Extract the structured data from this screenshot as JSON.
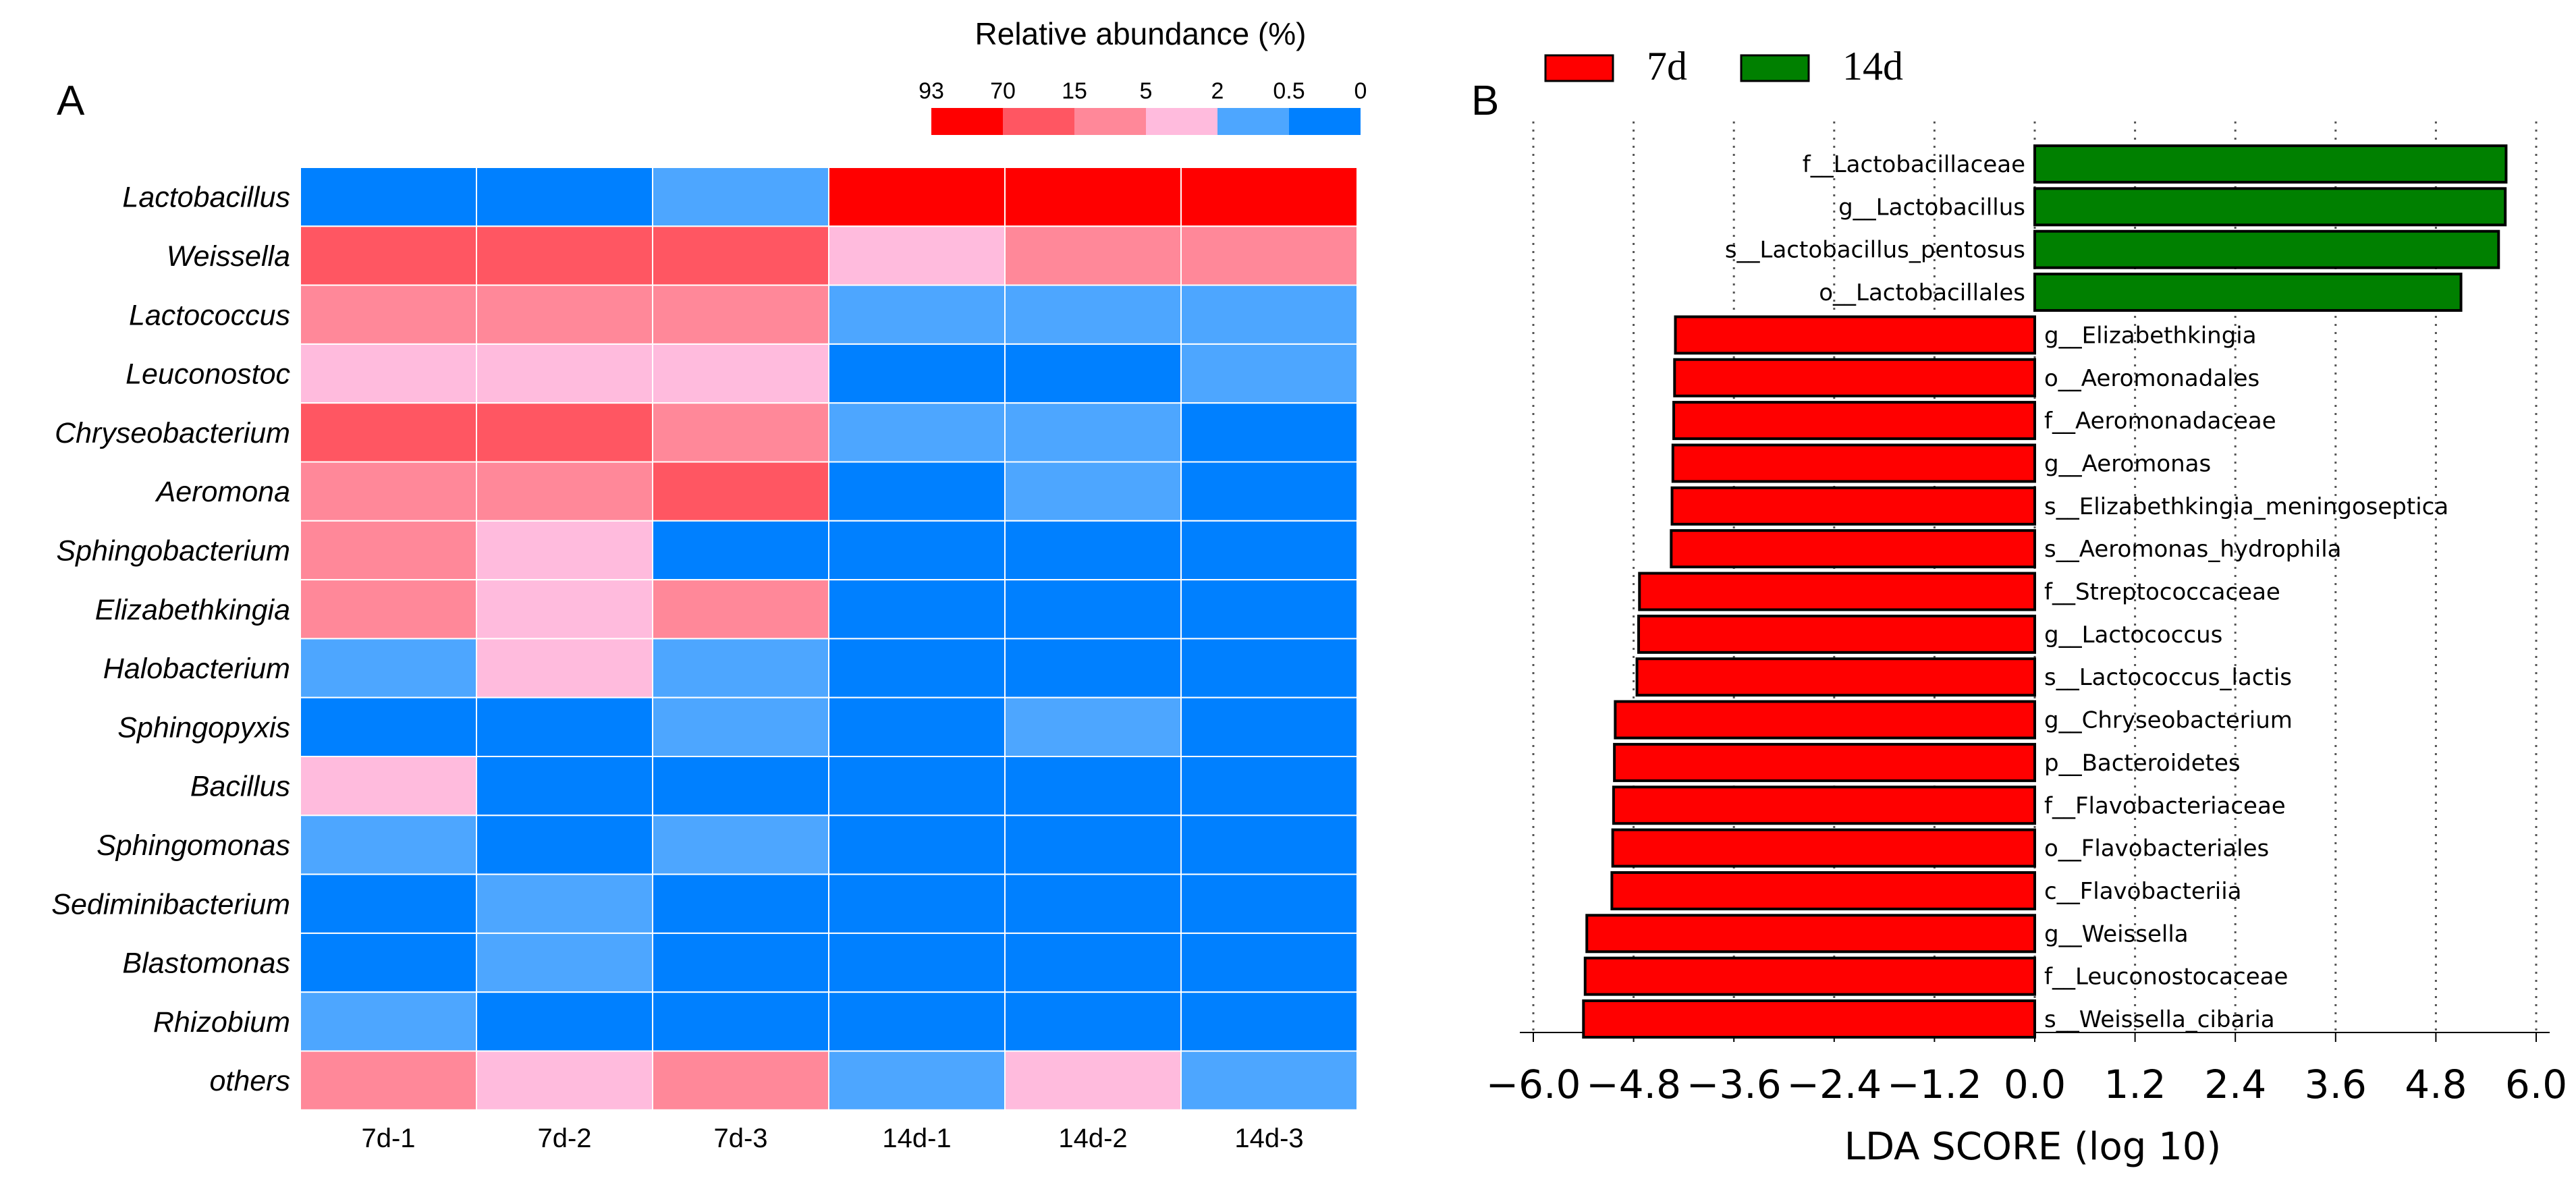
{
  "panel_a": {
    "letter": "A",
    "colorbar": {
      "title": "Relative abundance (%)",
      "ticks": [
        "93",
        "70",
        "15",
        "5",
        "2",
        "0.5",
        "0"
      ],
      "levels": [
        {
          "index": 1,
          "color": "#ff0000"
        },
        {
          "index": 2,
          "color": "#ff5662"
        },
        {
          "index": 3,
          "color": "#ff8899"
        },
        {
          "index": 4,
          "color": "#ffbbdd"
        },
        {
          "index": 5,
          "color": "#4da6ff"
        },
        {
          "index": 6,
          "color": "#0080ff"
        }
      ]
    }
  },
  "panel_b": {
    "letter": "B",
    "legend": [
      {
        "label": "7d",
        "color": "#ff0000"
      },
      {
        "label": "14d",
        "color": "#008000"
      }
    ]
  },
  "chart_data": [
    {
      "type": "heatmap",
      "title": "Relative abundance (%)",
      "columns": [
        "7d-1",
        "7d-2",
        "7d-3",
        "14d-1",
        "14d-2",
        "14d-3"
      ],
      "rows": [
        "Lactobacillus",
        "Weissella",
        "Lactococcus",
        "Leuconostoc",
        "Chryseobacterium",
        "Aeromona",
        "Sphingobacterium",
        "Elizabethkingia",
        "Halobacterium",
        "Sphingopyxis",
        "Bacillus",
        "Sphingomonas",
        "Sediminibacterium",
        "Blastomonas",
        "Rhizobium",
        "others"
      ],
      "level_note": "1 = 70-93%, 2 = 15-70%, 3 = 5-15%, 4 = 2-5%, 5 = 0.5-2%, 6 = 0-0.5%",
      "levels": [
        [
          6,
          6,
          5,
          1,
          1,
          1
        ],
        [
          2,
          2,
          2,
          4,
          3,
          3
        ],
        [
          3,
          3,
          3,
          5,
          5,
          5
        ],
        [
          4,
          4,
          4,
          6,
          6,
          5
        ],
        [
          2,
          2,
          3,
          5,
          5,
          6
        ],
        [
          3,
          3,
          2,
          6,
          5,
          6
        ],
        [
          3,
          4,
          6,
          6,
          6,
          6
        ],
        [
          3,
          4,
          3,
          6,
          6,
          6
        ],
        [
          5,
          4,
          5,
          6,
          6,
          6
        ],
        [
          6,
          6,
          5,
          6,
          5,
          6
        ],
        [
          4,
          6,
          6,
          6,
          6,
          6
        ],
        [
          5,
          6,
          5,
          6,
          6,
          6
        ],
        [
          6,
          5,
          6,
          6,
          6,
          6
        ],
        [
          6,
          5,
          6,
          6,
          6,
          6
        ],
        [
          5,
          6,
          6,
          6,
          6,
          6
        ],
        [
          3,
          4,
          3,
          5,
          4,
          5
        ]
      ]
    },
    {
      "type": "bar",
      "orientation": "horizontal",
      "xlabel": "LDA SCORE (log 10)",
      "ylabel": "",
      "xlim": [
        -6.0,
        6.0
      ],
      "xticks": [
        "−6.0",
        "−4.8",
        "−3.6",
        "−2.4",
        "−1.2",
        "0.0",
        "1.2",
        "2.4",
        "3.6",
        "4.8",
        "6.0"
      ],
      "xtick_values": [
        -6.0,
        -4.8,
        -3.6,
        -2.4,
        -1.2,
        0.0,
        1.2,
        2.4,
        3.6,
        4.8,
        6.0
      ],
      "grid": "vertical dotted",
      "series": [
        {
          "name": "7d",
          "color": "#ff0000"
        },
        {
          "name": "14d",
          "color": "#008000"
        }
      ],
      "bars": [
        {
          "label": "f__Lactobacillaceae",
          "value": 5.64,
          "group": "14d"
        },
        {
          "label": "g__Lactobacillus",
          "value": 5.63,
          "group": "14d"
        },
        {
          "label": "s__Lactobacillus_pentosus",
          "value": 5.55,
          "group": "14d"
        },
        {
          "label": "o__Lactobacillales",
          "value": 5.1,
          "group": "14d"
        },
        {
          "label": "g__Elizabethkingia",
          "value": -4.3,
          "group": "7d"
        },
        {
          "label": "o__Aeromonadales",
          "value": -4.31,
          "group": "7d"
        },
        {
          "label": "f__Aeromonadaceae",
          "value": -4.32,
          "group": "7d"
        },
        {
          "label": "g__Aeromonas",
          "value": -4.33,
          "group": "7d"
        },
        {
          "label": "s__Elizabethkingia_meningoseptica",
          "value": -4.34,
          "group": "7d"
        },
        {
          "label": "s__Aeromonas_hydrophila",
          "value": -4.35,
          "group": "7d"
        },
        {
          "label": "f__Streptococcaceae",
          "value": -4.73,
          "group": "7d"
        },
        {
          "label": "g__Lactococcus",
          "value": -4.74,
          "group": "7d"
        },
        {
          "label": "s__Lactococcus_lactis",
          "value": -4.76,
          "group": "7d"
        },
        {
          "label": "g__Chryseobacterium",
          "value": -5.02,
          "group": "7d"
        },
        {
          "label": "p__Bacteroidetes",
          "value": -5.03,
          "group": "7d"
        },
        {
          "label": "f__Flavobacteriaceae",
          "value": -5.04,
          "group": "7d"
        },
        {
          "label": "o__Flavobacteriales",
          "value": -5.05,
          "group": "7d"
        },
        {
          "label": "c__Flavobacteriia",
          "value": -5.06,
          "group": "7d"
        },
        {
          "label": "g__Weissella",
          "value": -5.36,
          "group": "7d"
        },
        {
          "label": "f__Leuconostocaceae",
          "value": -5.38,
          "group": "7d"
        },
        {
          "label": "s__Weissella_cibaria",
          "value": -5.4,
          "group": "7d"
        }
      ]
    }
  ]
}
